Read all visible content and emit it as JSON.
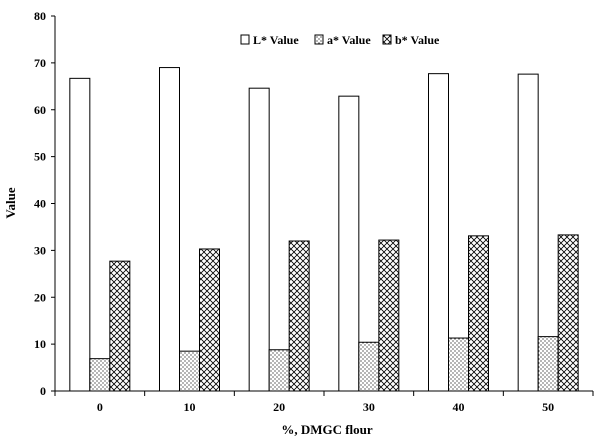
{
  "chart_data": {
    "type": "bar",
    "xlabel": "%, DMGC flour",
    "ylabel": "Value",
    "ylim": [
      0,
      80
    ],
    "yticks": [
      0,
      10,
      20,
      30,
      40,
      50,
      60,
      70,
      80
    ],
    "categories": [
      "0",
      "10",
      "20",
      "30",
      "40",
      "50"
    ],
    "series": [
      {
        "name": "L* Value",
        "pattern": "plain",
        "values": [
          66.7,
          69.0,
          64.6,
          62.9,
          67.7,
          67.6
        ]
      },
      {
        "name": "a* Value",
        "pattern": "dots",
        "values": [
          6.9,
          8.5,
          8.8,
          10.4,
          11.3,
          11.6
        ]
      },
      {
        "name": "b* Value",
        "pattern": "crosshatch",
        "values": [
          27.7,
          30.3,
          32.0,
          32.2,
          33.1,
          33.3
        ]
      }
    ],
    "legend_position": "top-right",
    "grid": false
  }
}
